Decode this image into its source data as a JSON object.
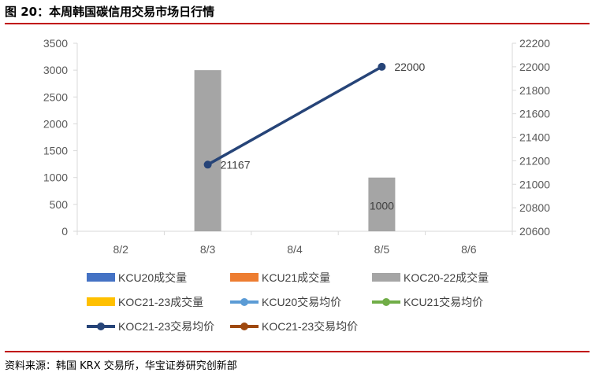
{
  "figure": {
    "title": "图 20：本周韩国碳信用交易市场日行情",
    "source": "资料来源：韩国 KRX 交易所，华宝证券研究创新部"
  },
  "colors": {
    "accent_rule": "#c00000",
    "axis": "#d9d9d9",
    "tick_text": "#595959"
  },
  "chart_data": {
    "type": "bar",
    "categories": [
      "8/2",
      "8/3",
      "8/4",
      "8/5",
      "8/6"
    ],
    "y_left": {
      "min": 0,
      "max": 3500,
      "step": 500,
      "ticks": [
        "0",
        "500",
        "1000",
        "1500",
        "2000",
        "2500",
        "3000",
        "3500"
      ]
    },
    "y_right": {
      "min": 20600,
      "max": 22200,
      "step": 200,
      "ticks": [
        "20600",
        "20800",
        "21000",
        "21200",
        "21400",
        "21600",
        "21800",
        "22000",
        "22200"
      ]
    },
    "grid": false,
    "legend_position": "bottom",
    "series": [
      {
        "name": "KCU20成交量",
        "kind": "bar",
        "axis": "left",
        "color": "#4472c4",
        "values": [
          null,
          null,
          null,
          null,
          null
        ]
      },
      {
        "name": "KCU21成交量",
        "kind": "bar",
        "axis": "left",
        "color": "#ed7d31",
        "values": [
          null,
          null,
          null,
          null,
          null
        ]
      },
      {
        "name": "KOC20-22成交量",
        "kind": "bar",
        "axis": "left",
        "color": "#a5a5a5",
        "values": [
          null,
          3000,
          null,
          1000,
          null
        ],
        "labels": [
          null,
          null,
          null,
          "1000",
          null
        ]
      },
      {
        "name": "KOC21-23成交量",
        "kind": "bar",
        "axis": "left",
        "color": "#ffc000",
        "values": [
          null,
          null,
          null,
          null,
          null
        ]
      },
      {
        "name": "KCU20交易均价",
        "kind": "line",
        "axis": "right",
        "color": "#5b9bd5",
        "values": [
          null,
          null,
          null,
          null,
          null
        ]
      },
      {
        "name": "KCU21交易均价",
        "kind": "line",
        "axis": "right",
        "color": "#70ad47",
        "values": [
          null,
          null,
          null,
          null,
          null
        ]
      },
      {
        "name": "KOC21-23交易均价",
        "kind": "line",
        "axis": "right",
        "color": "#264478",
        "values": [
          null,
          21167,
          null,
          22000,
          null
        ],
        "labels": [
          null,
          "21167",
          null,
          "22000",
          null
        ]
      },
      {
        "name": "KOC21-23交易均价",
        "kind": "line",
        "axis": "right",
        "color": "#9e480e",
        "values": [
          null,
          null,
          null,
          null,
          null
        ]
      }
    ]
  }
}
